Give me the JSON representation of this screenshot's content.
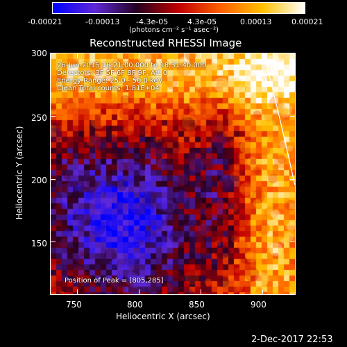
{
  "colorbar": {
    "tick_labels": [
      "-0.00021",
      "-0.00013",
      "-4.3e-05",
      "4.3e-05",
      "0.00013",
      "0.00021"
    ],
    "units_label": "(photons cm⁻² s⁻¹ asec⁻²)",
    "colors": [
      "#0000ff",
      "#5e28d8",
      "#260020",
      "#c00000",
      "#ff6000",
      "#ffc000",
      "#ffffff"
    ]
  },
  "plot": {
    "title": "Reconstructed RHESSI Image",
    "xlabel": "Heliocentric X (arcsec)",
    "ylabel": "Heliocentric Y (arcsec)",
    "x_ticks": [
      "750",
      "800",
      "850",
      "900"
    ],
    "y_ticks": [
      "300",
      "250",
      "200",
      "150"
    ],
    "annotations": [
      "26-Jun-2015 18:21:00.000 to 18:31:40.000",
      "Detectors: 3F 5F 6F 8F 9F, Att 0",
      "Energy Range: 25.0 - 50.0 keV",
      "Clean    Total counts: 1.81E+04"
    ],
    "peak_text": "Position of Peak = [805,285]"
  },
  "footer": {
    "timestamp": "2-Dec-2017 22:53"
  }
}
